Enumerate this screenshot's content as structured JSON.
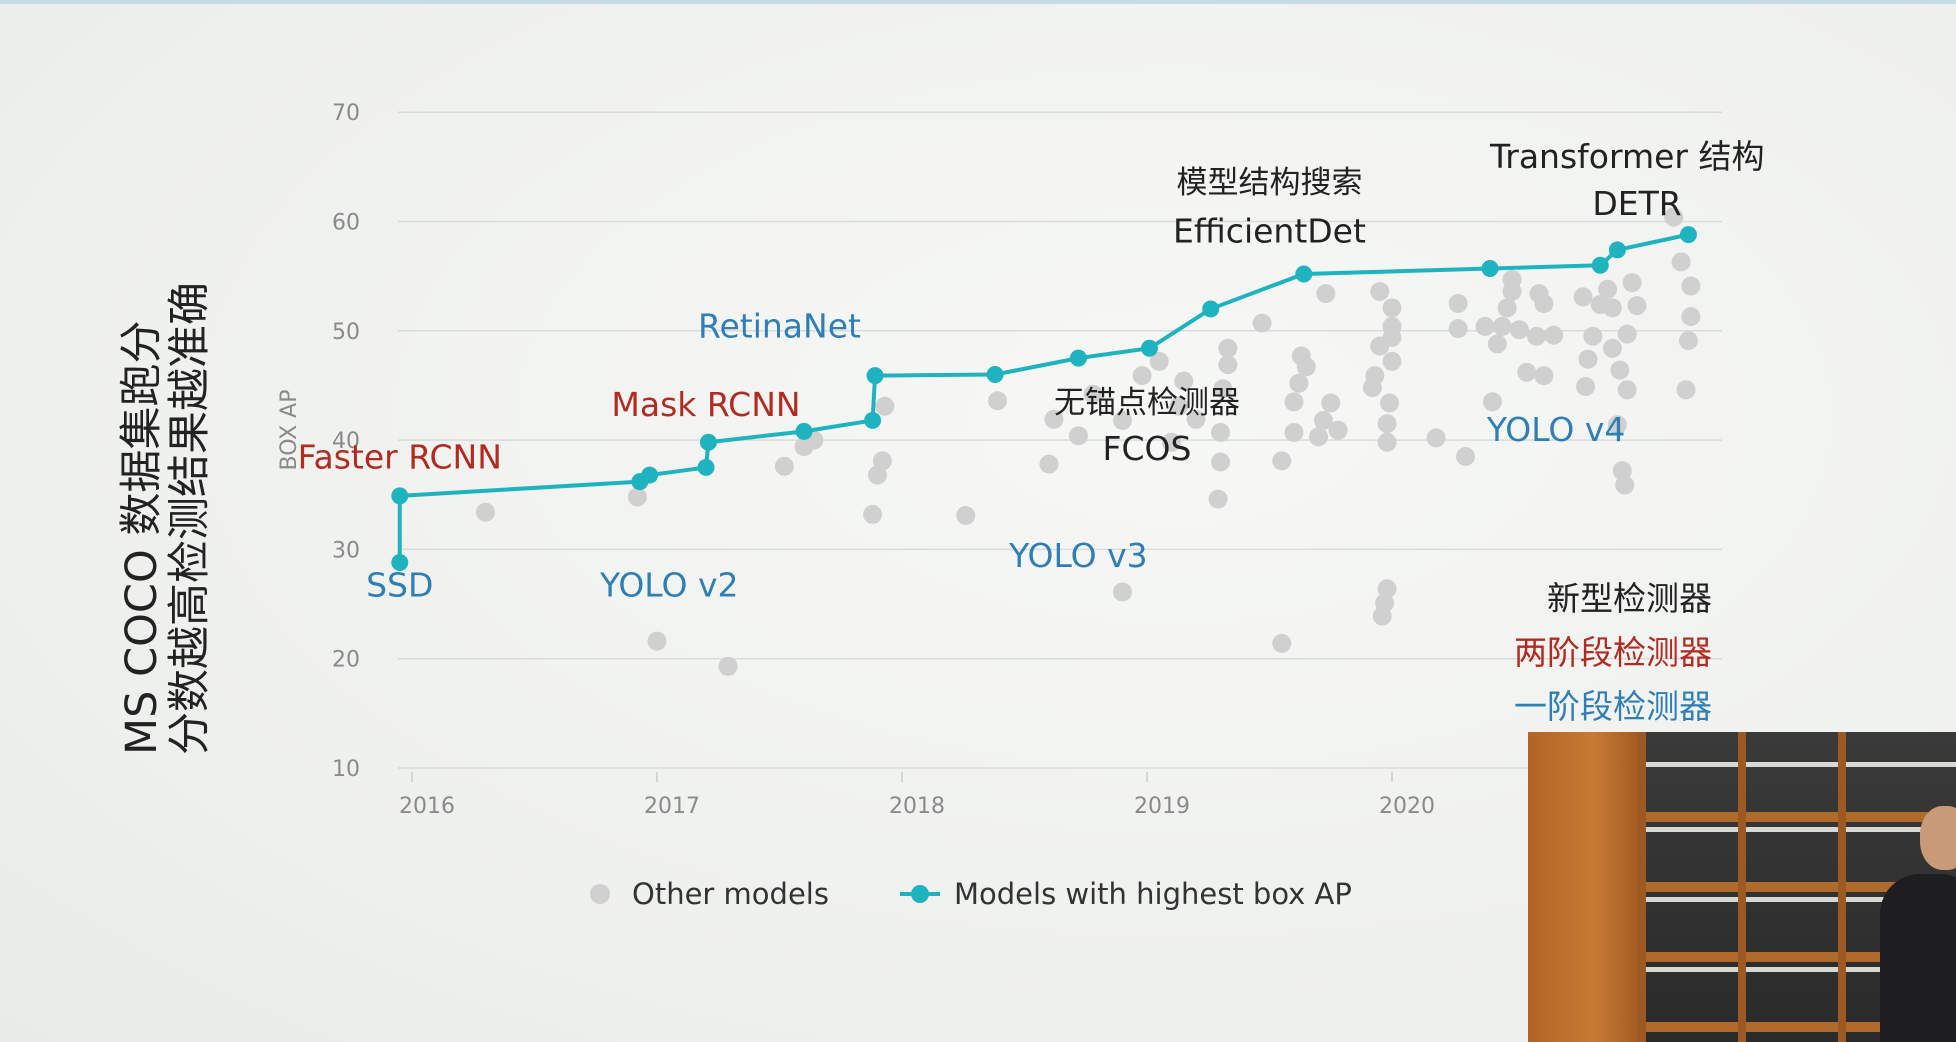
{
  "slide_title": {
    "line1": "MS COCO 数据集跑分",
    "line2": "分数越高检测结果越准确"
  },
  "chart_data": {
    "type": "scatter",
    "ylabel": "BOX AP",
    "ylim": [
      10,
      70
    ],
    "xlim": [
      2015.9,
      2021.3
    ],
    "y_ticks": [
      "10",
      "20",
      "30",
      "40",
      "50",
      "60",
      "70"
    ],
    "x_ticks": [
      "2016",
      "2017",
      "2018",
      "2019",
      "2020"
    ],
    "grid": true,
    "legend_position": "bottom",
    "legend": {
      "other": "Other models",
      "best": "Models with highest box AP"
    },
    "colors": {
      "best": "#1fb3c0",
      "other": "#d0d0d0",
      "two_stage": "#b22b22",
      "one_stage": "#2f7fb5",
      "new_type": "#222222"
    },
    "series": [
      {
        "name": "Models with highest box AP",
        "points": [
          [
            2015.95,
            28.8
          ],
          [
            2015.95,
            34.9
          ],
          [
            2016.93,
            36.2
          ],
          [
            2016.97,
            36.8
          ],
          [
            2017.2,
            37.5
          ],
          [
            2017.21,
            39.8
          ],
          [
            2017.6,
            40.8
          ],
          [
            2017.88,
            41.8
          ],
          [
            2017.89,
            45.9
          ],
          [
            2018.38,
            46.0
          ],
          [
            2018.72,
            47.5
          ],
          [
            2019.01,
            48.4
          ],
          [
            2019.26,
            52.0
          ],
          [
            2019.64,
            55.2
          ],
          [
            2020.4,
            55.7
          ],
          [
            2020.85,
            56.0
          ],
          [
            2020.92,
            57.4
          ],
          [
            2021.21,
            58.8
          ]
        ]
      },
      {
        "name": "Other models",
        "points": [
          [
            2016.3,
            33.4
          ],
          [
            2016.92,
            34.8
          ],
          [
            2017.0,
            21.6
          ],
          [
            2017.29,
            19.3
          ],
          [
            2017.52,
            37.6
          ],
          [
            2017.6,
            39.4
          ],
          [
            2017.64,
            40.0
          ],
          [
            2017.88,
            33.2
          ],
          [
            2017.9,
            36.8
          ],
          [
            2017.92,
            38.1
          ],
          [
            2017.93,
            43.1
          ],
          [
            2018.26,
            33.1
          ],
          [
            2018.39,
            43.6
          ],
          [
            2018.6,
            37.8
          ],
          [
            2018.62,
            41.9
          ],
          [
            2018.72,
            40.4
          ],
          [
            2018.78,
            44.2
          ],
          [
            2018.9,
            26.1
          ],
          [
            2018.9,
            41.8
          ],
          [
            2018.98,
            45.9
          ],
          [
            2019.05,
            47.2
          ],
          [
            2019.1,
            39.8
          ],
          [
            2019.13,
            43.1
          ],
          [
            2019.15,
            45.4
          ],
          [
            2019.2,
            41.9
          ],
          [
            2019.29,
            34.6
          ],
          [
            2019.3,
            38.0
          ],
          [
            2019.3,
            40.7
          ],
          [
            2019.31,
            44.7
          ],
          [
            2019.33,
            46.9
          ],
          [
            2019.33,
            48.4
          ],
          [
            2019.47,
            50.7
          ],
          [
            2019.55,
            21.4
          ],
          [
            2019.55,
            38.1
          ],
          [
            2019.6,
            40.7
          ],
          [
            2019.6,
            43.5
          ],
          [
            2019.62,
            45.2
          ],
          [
            2019.63,
            47.7
          ],
          [
            2019.65,
            46.7
          ],
          [
            2019.7,
            40.3
          ],
          [
            2019.72,
            41.8
          ],
          [
            2019.73,
            53.4
          ],
          [
            2019.75,
            43.4
          ],
          [
            2019.78,
            40.9
          ],
          [
            2019.92,
            44.8
          ],
          [
            2019.93,
            45.9
          ],
          [
            2019.95,
            53.6
          ],
          [
            2019.95,
            48.6
          ],
          [
            2019.96,
            23.9
          ],
          [
            2019.97,
            25.1
          ],
          [
            2019.98,
            26.4
          ],
          [
            2019.98,
            39.8
          ],
          [
            2019.98,
            41.5
          ],
          [
            2019.99,
            43.4
          ],
          [
            2020.0,
            47.2
          ],
          [
            2020.0,
            49.4
          ],
          [
            2020.0,
            50.4
          ],
          [
            2020.0,
            52.1
          ],
          [
            2020.18,
            40.2
          ],
          [
            2020.27,
            50.2
          ],
          [
            2020.27,
            52.5
          ],
          [
            2020.3,
            38.5
          ],
          [
            2020.38,
            50.4
          ],
          [
            2020.41,
            43.5
          ],
          [
            2020.43,
            48.8
          ],
          [
            2020.45,
            50.4
          ],
          [
            2020.47,
            52.1
          ],
          [
            2020.49,
            53.6
          ],
          [
            2020.49,
            54.7
          ],
          [
            2020.52,
            50.1
          ],
          [
            2020.55,
            46.2
          ],
          [
            2020.59,
            49.5
          ],
          [
            2020.6,
            53.4
          ],
          [
            2020.62,
            52.5
          ],
          [
            2020.62,
            45.9
          ],
          [
            2020.66,
            49.6
          ],
          [
            2020.78,
            53.1
          ],
          [
            2020.79,
            44.9
          ],
          [
            2020.8,
            47.4
          ],
          [
            2020.82,
            49.5
          ],
          [
            2020.85,
            52.4
          ],
          [
            2020.88,
            53.8
          ],
          [
            2020.9,
            48.4
          ],
          [
            2020.9,
            52.1
          ],
          [
            2020.92,
            41.4
          ],
          [
            2020.93,
            46.4
          ],
          [
            2020.94,
            37.2
          ],
          [
            2020.95,
            35.9
          ],
          [
            2020.96,
            44.6
          ],
          [
            2020.96,
            49.7
          ],
          [
            2020.98,
            54.4
          ],
          [
            2021.0,
            52.3
          ],
          [
            2021.15,
            60.4
          ],
          [
            2021.18,
            56.3
          ],
          [
            2021.2,
            44.6
          ],
          [
            2021.21,
            49.1
          ],
          [
            2021.22,
            51.3
          ],
          [
            2021.22,
            54.1
          ]
        ]
      }
    ],
    "annotations": [
      {
        "text": "SSD",
        "category": "one_stage",
        "x": 2015.95,
        "y": 25.7,
        "size": 33,
        "anchor": "middle"
      },
      {
        "text": "Faster RCNN",
        "category": "two_stage",
        "x": 2015.95,
        "y": 37.4,
        "size": 33,
        "anchor": "middle"
      },
      {
        "text": "YOLO v2",
        "category": "one_stage",
        "x": 2017.05,
        "y": 25.7,
        "size": 33,
        "anchor": "middle"
      },
      {
        "text": "Mask RCNN",
        "category": "two_stage",
        "x": 2017.2,
        "y": 42.2,
        "size": 33,
        "anchor": "middle"
      },
      {
        "text": "RetinaNet",
        "category": "one_stage",
        "x": 2017.5,
        "y": 49.4,
        "size": 33,
        "anchor": "middle"
      },
      {
        "text": "YOLO v3",
        "category": "one_stage",
        "x": 2018.72,
        "y": 28.4,
        "size": 33,
        "anchor": "middle"
      },
      {
        "text": "无锚点检测器",
        "category": "new_type",
        "x": 2019.0,
        "y": 42.5,
        "size": 31,
        "anchor": "middle"
      },
      {
        "text": "FCOS",
        "category": "new_type",
        "x": 2019.0,
        "y": 38.2,
        "size": 33,
        "anchor": "middle"
      },
      {
        "text": "模型结构搜索",
        "category": "new_type",
        "x": 2019.5,
        "y": 62.6,
        "size": 31,
        "anchor": "middle"
      },
      {
        "text": "EfficientDet",
        "category": "new_type",
        "x": 2019.5,
        "y": 58.1,
        "size": 33,
        "anchor": "middle"
      },
      {
        "text": "Transformer 结构",
        "category": "new_type",
        "x": 2020.96,
        "y": 64.9,
        "size": 33,
        "anchor": "middle"
      },
      {
        "text": "DETR",
        "category": "new_type",
        "x": 2021.0,
        "y": 60.6,
        "size": 33,
        "anchor": "middle"
      },
      {
        "text": "YOLO v4",
        "category": "one_stage",
        "x": 2020.67,
        "y": 39.9,
        "size": 33,
        "anchor": "middle"
      }
    ],
    "category_legend": [
      {
        "text": "新型检测器",
        "category": "new_type"
      },
      {
        "text": "两阶段检测器",
        "category": "two_stage"
      },
      {
        "text": "一阶段检测器",
        "category": "one_stage"
      }
    ]
  }
}
